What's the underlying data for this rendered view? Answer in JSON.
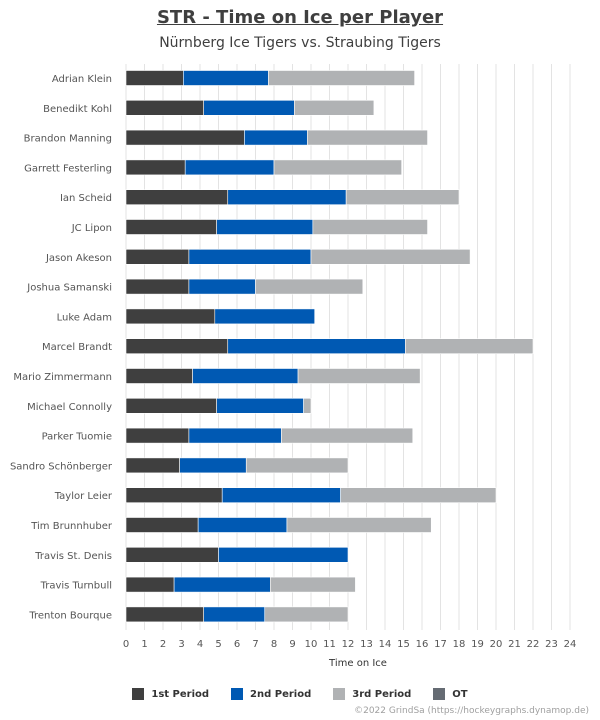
{
  "title": "STR - Time on Ice per Player",
  "subtitle": "Nürnberg Ice Tigers vs. Straubing Tigers",
  "credit": "©2022 GrindSa (https://hockeygraphs.dynamop.de)",
  "chart_data": {
    "type": "bar",
    "orientation": "horizontal",
    "stacked": true,
    "xlabel": "Time on Ice",
    "xlim": [
      0,
      24.5
    ],
    "xticks": [
      0,
      1,
      2,
      3,
      4,
      5,
      6,
      7,
      8,
      9,
      10,
      11,
      12,
      13,
      14,
      15,
      16,
      17,
      18,
      19,
      20,
      21,
      22,
      23,
      24
    ],
    "grid": "vertical",
    "legend_position": "bottom",
    "categories": [
      "Adrian Klein",
      "Benedikt Kohl",
      "Brandon Manning",
      "Garrett Festerling",
      "Ian Scheid",
      "JC Lipon",
      "Jason Akeson",
      "Joshua Samanski",
      "Luke Adam",
      "Marcel Brandt",
      "Mario Zimmermann",
      "Michael Connolly",
      "Parker Tuomie",
      "Sandro Schönberger",
      "Taylor Leier",
      "Tim Brunnhuber",
      "Travis St. Denis",
      "Travis Turnbull",
      "Trenton Bourque"
    ],
    "series": [
      {
        "name": "1st Period",
        "color": "#3f3f3f",
        "values": [
          3.1,
          4.2,
          6.4,
          3.2,
          5.5,
          4.9,
          3.4,
          3.4,
          4.8,
          5.5,
          3.6,
          4.9,
          3.4,
          2.9,
          5.2,
          3.9,
          5.0,
          2.6,
          4.2
        ]
      },
      {
        "name": "2nd Period",
        "color": "#0059b3",
        "values": [
          4.6,
          4.9,
          3.4,
          4.8,
          6.4,
          5.2,
          6.6,
          3.6,
          5.4,
          9.6,
          5.7,
          4.7,
          5.0,
          3.6,
          6.4,
          4.8,
          7.0,
          5.2,
          3.3
        ]
      },
      {
        "name": "3rd Period",
        "color": "#b0b2b4",
        "values": [
          7.9,
          4.3,
          6.5,
          6.9,
          6.1,
          6.2,
          8.6,
          5.8,
          0.0,
          6.9,
          6.6,
          0.4,
          7.1,
          5.5,
          8.4,
          7.8,
          0.0,
          4.6,
          4.5
        ]
      },
      {
        "name": "OT",
        "color": "#656b73",
        "values": [
          0,
          0,
          0,
          0,
          0,
          0,
          0,
          0,
          0,
          0,
          0,
          0,
          0,
          0,
          0,
          0,
          0,
          0,
          0
        ]
      }
    ]
  }
}
